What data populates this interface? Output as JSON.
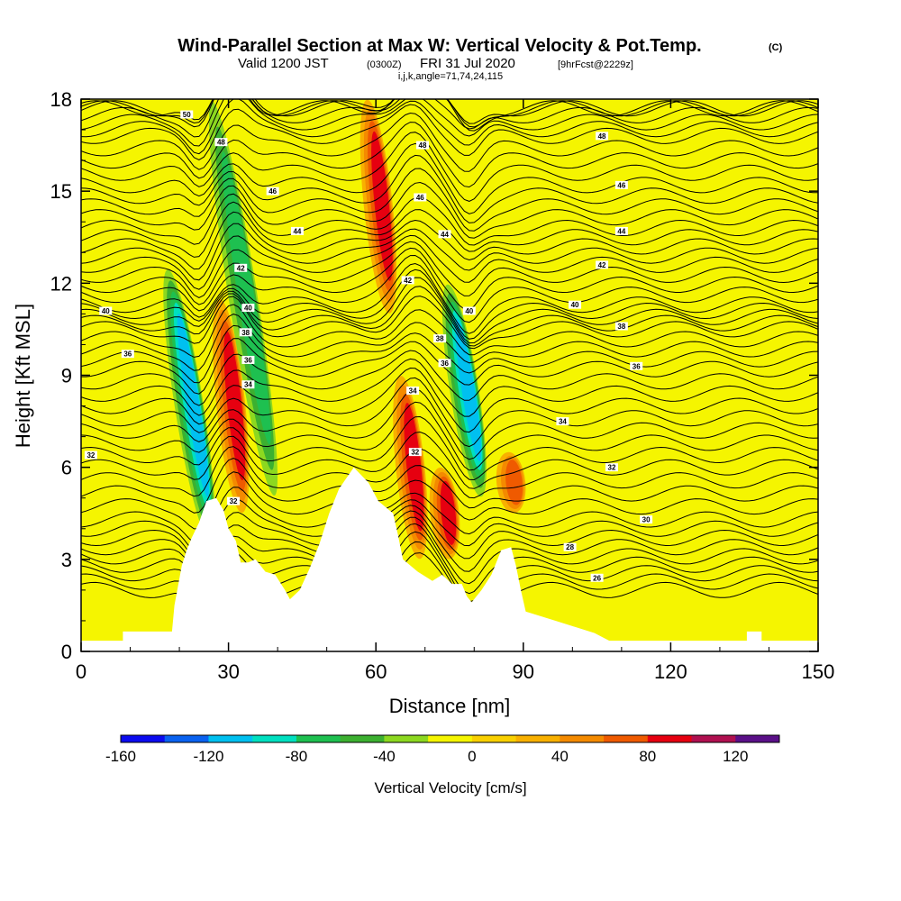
{
  "header": {
    "title_main": "Wind-Parallel Section at Max W: Vertical Velocity & Pot.Temp.",
    "title_tag": "(C)",
    "valid_prefix": "Valid 1200 JST",
    "valid_utc": "(0300Z)",
    "valid_date": "FRI 31 Jul 2020",
    "valid_fcst": "[9hrFcst@2229z]",
    "ijk_line": "i,j,k,angle=71,74,24,115"
  },
  "chart_data": {
    "type": "heatmap",
    "title": "Wind-Parallel Section at Max W: Vertical Velocity & Pot.Temp.",
    "xlabel": "Distance [nm]",
    "ylabel": "Height [Kft MSL]",
    "xlim": [
      0,
      150
    ],
    "ylim": [
      0,
      18
    ],
    "x_ticks": [
      0,
      30,
      60,
      90,
      120,
      150
    ],
    "x_tick_labels": [
      "0",
      "30",
      "60",
      "90",
      "120",
      "150"
    ],
    "y_ticks": [
      0,
      3,
      6,
      9,
      12,
      15,
      18
    ],
    "y_tick_labels": [
      "0",
      "3",
      "6",
      "9",
      "12",
      "15",
      "18"
    ],
    "terrain_kft": [
      [
        0,
        0.35
      ],
      [
        8.5,
        0.35
      ],
      [
        8.5,
        0.65
      ],
      [
        18.5,
        0.65
      ],
      [
        19,
        1.5
      ],
      [
        20.5,
        2.8
      ],
      [
        21.5,
        3.3
      ],
      [
        22.5,
        3.7
      ],
      [
        24,
        4.2
      ],
      [
        25.5,
        4.9
      ],
      [
        27.5,
        5.0
      ],
      [
        29,
        4.6
      ],
      [
        30,
        4.0
      ],
      [
        31.5,
        3.6
      ],
      [
        32.5,
        2.9
      ],
      [
        34,
        2.9
      ],
      [
        35.5,
        3.0
      ],
      [
        37.5,
        2.6
      ],
      [
        39.5,
        2.5
      ],
      [
        41.5,
        2.0
      ],
      [
        42.5,
        1.7
      ],
      [
        44.5,
        2.0
      ],
      [
        46.5,
        2.7
      ],
      [
        48.5,
        3.5
      ],
      [
        50.5,
        4.5
      ],
      [
        52.5,
        5.3
      ],
      [
        55.5,
        6.0
      ],
      [
        58.5,
        5.5
      ],
      [
        60.5,
        4.9
      ],
      [
        63.5,
        4.5
      ],
      [
        64.5,
        3.8
      ],
      [
        65.5,
        3.0
      ],
      [
        68.5,
        2.6
      ],
      [
        71.5,
        2.3
      ],
      [
        73.5,
        2.5
      ],
      [
        75.5,
        2.2
      ],
      [
        77.5,
        2.2
      ],
      [
        78.5,
        1.8
      ],
      [
        79.5,
        1.6
      ],
      [
        81.5,
        2.0
      ],
      [
        83.5,
        2.5
      ],
      [
        85.5,
        3.3
      ],
      [
        87.5,
        3.4
      ],
      [
        88.5,
        2.8
      ],
      [
        89.5,
        2.0
      ],
      [
        90.5,
        1.3
      ],
      [
        92.5,
        1.2
      ],
      [
        96.5,
        1.0
      ],
      [
        100.5,
        0.8
      ],
      [
        104.5,
        0.6
      ],
      [
        107.5,
        0.35
      ],
      [
        135.5,
        0.35
      ],
      [
        135.5,
        0.65
      ],
      [
        138.5,
        0.65
      ],
      [
        138.5,
        0.35
      ],
      [
        150,
        0.35
      ]
    ],
    "theta_contour_levels": [
      26,
      28,
      30,
      32,
      34,
      36,
      38,
      40,
      42,
      44,
      46,
      48,
      50
    ],
    "theta_labels_shown": [
      {
        "x": 2,
        "y": 6.4,
        "label": "32"
      },
      {
        "x": 9.5,
        "y": 9.7,
        "label": "36"
      },
      {
        "x": 5,
        "y": 11.1,
        "label": "40"
      },
      {
        "x": 21.5,
        "y": 17.5,
        "label": "50"
      },
      {
        "x": 28.5,
        "y": 16.6,
        "label": "48"
      },
      {
        "x": 39,
        "y": 15.0,
        "label": "46"
      },
      {
        "x": 44,
        "y": 13.7,
        "label": "44"
      },
      {
        "x": 32.5,
        "y": 12.5,
        "label": "42"
      },
      {
        "x": 34,
        "y": 11.2,
        "label": "40"
      },
      {
        "x": 33.5,
        "y": 10.4,
        "label": "38"
      },
      {
        "x": 34,
        "y": 9.5,
        "label": "36"
      },
      {
        "x": 34,
        "y": 8.7,
        "label": "34"
      },
      {
        "x": 31,
        "y": 4.9,
        "label": "32"
      },
      {
        "x": 69.5,
        "y": 16.5,
        "label": "48"
      },
      {
        "x": 69,
        "y": 14.8,
        "label": "46"
      },
      {
        "x": 74,
        "y": 13.6,
        "label": "44"
      },
      {
        "x": 66.5,
        "y": 12.1,
        "label": "42"
      },
      {
        "x": 79,
        "y": 11.1,
        "label": "40"
      },
      {
        "x": 73,
        "y": 10.2,
        "label": "38"
      },
      {
        "x": 74,
        "y": 9.4,
        "label": "36"
      },
      {
        "x": 67.5,
        "y": 8.5,
        "label": "34"
      },
      {
        "x": 68,
        "y": 6.5,
        "label": "32"
      },
      {
        "x": 106,
        "y": 16.8,
        "label": "48"
      },
      {
        "x": 110,
        "y": 15.2,
        "label": "46"
      },
      {
        "x": 110,
        "y": 13.7,
        "label": "44"
      },
      {
        "x": 106,
        "y": 12.6,
        "label": "42"
      },
      {
        "x": 100.5,
        "y": 11.3,
        "label": "40"
      },
      {
        "x": 110,
        "y": 10.6,
        "label": "38"
      },
      {
        "x": 113,
        "y": 9.3,
        "label": "36"
      },
      {
        "x": 98,
        "y": 7.5,
        "label": "34"
      },
      {
        "x": 108,
        "y": 6.0,
        "label": "32"
      },
      {
        "x": 115,
        "y": 4.3,
        "label": "30"
      },
      {
        "x": 99.5,
        "y": 3.4,
        "label": "28"
      },
      {
        "x": 105,
        "y": 2.4,
        "label": "26"
      }
    ],
    "colorbar": {
      "label": "Vertical Velocity [cm/s]",
      "tick_values": [
        -160,
        -120,
        -80,
        -40,
        0,
        40,
        80,
        120
      ],
      "tick_labels": [
        "-160",
        "-120",
        "-80",
        "-40",
        "0",
        "40",
        "80",
        "120"
      ],
      "bounds": [
        -160,
        -140,
        -120,
        -100,
        -80,
        -60,
        -40,
        -20,
        0,
        20,
        40,
        60,
        80,
        100,
        120,
        140
      ],
      "colors": [
        "#0b0bef",
        "#0a62f0",
        "#00c0f0",
        "#00e0c0",
        "#1ec050",
        "#3cb030",
        "#8cd820",
        "#f5f500",
        "#f9d000",
        "#f8b000",
        "#f48a00",
        "#ef5a00",
        "#e60010",
        "#b01050",
        "#5a1088"
      ]
    },
    "velocity_features": [
      {
        "x": 22,
        "kft_range": [
          3.5,
          12.5
        ],
        "w": -110,
        "kind": "downdraft"
      },
      {
        "x": 30.5,
        "kft_range": [
          4.5,
          11.5
        ],
        "w": 85,
        "kind": "updraft"
      },
      {
        "x": 33,
        "kft_range": [
          5,
          18
        ],
        "w": -60,
        "kind": "downdraft"
      },
      {
        "x": 67,
        "kft_range": [
          3,
          9
        ],
        "w": 90,
        "kind": "updraft"
      },
      {
        "x": 74,
        "kft_range": [
          3,
          6
        ],
        "w": 90,
        "kind": "updraft"
      },
      {
        "x": 78,
        "kft_range": [
          5,
          12
        ],
        "w": -100,
        "kind": "downdraft"
      },
      {
        "x": 60.5,
        "kft_range": [
          11,
          18
        ],
        "w": 80,
        "kind": "updraft"
      },
      {
        "x": 87.5,
        "kft_range": [
          4.5,
          6.5
        ],
        "w": 60,
        "kind": "updraft"
      }
    ]
  }
}
